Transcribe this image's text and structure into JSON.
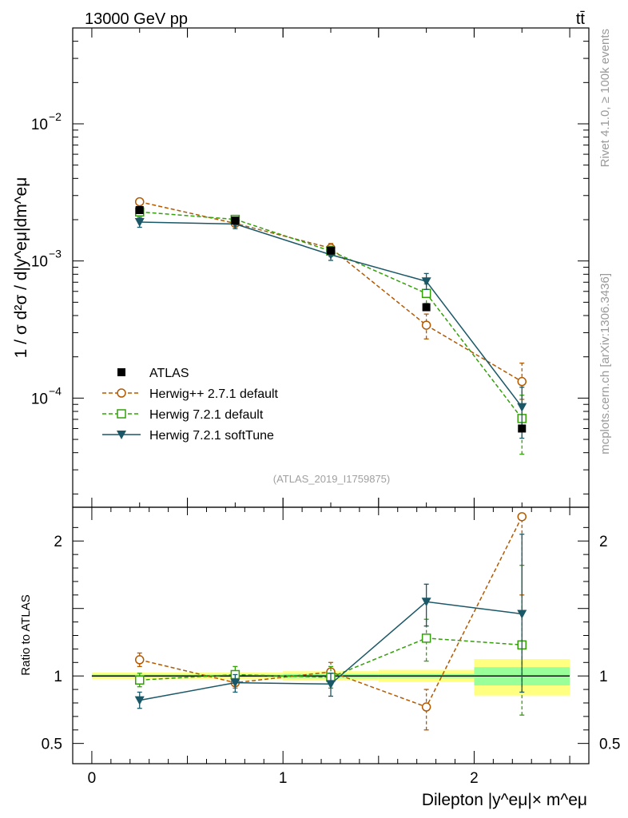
{
  "header": {
    "energy_label": "13000 GeV pp",
    "process_label": "tt̄"
  },
  "side_labels": {
    "rivet": "Rivet 4.1.0, ≥ 100k events",
    "mcplots": "mcplots.cern.ch [arXiv:1306.3436]"
  },
  "watermark": "(ATLAS_2019_I1759875)",
  "colors": {
    "atlas": "#000000",
    "herwigpp": "#b35900",
    "herwig_default": "#33a00a",
    "herwig_soft": "#1a5767",
    "band_yellow": "#ffff80",
    "band_green": "#99ff99"
  },
  "chart_data": [
    {
      "id": "main",
      "type": "line",
      "yscale": "log",
      "ylabel": "1 / σ d²σ / d|y^eμ|dm^eμ",
      "xlim": [
        -0.1,
        2.6
      ],
      "ylim": [
        1.6e-05,
        0.05
      ],
      "y_ticks": [
        {
          "value": 0.0001,
          "label": "10",
          "exp": "−4"
        },
        {
          "value": 0.001,
          "label": "10",
          "exp": "−3"
        },
        {
          "value": 0.01,
          "label": "10",
          "exp": "−2"
        }
      ],
      "x_bins": [
        [
          0,
          0.5
        ],
        [
          0.5,
          1.0
        ],
        [
          1.0,
          1.5
        ],
        [
          1.5,
          2.0
        ],
        [
          2.0,
          2.5
        ]
      ],
      "legend": [
        "ATLAS",
        "Herwig++ 2.7.1 default",
        "Herwig 7.2.1 default",
        "Herwig 7.2.1 softTune"
      ],
      "series": [
        {
          "name": "ATLAS",
          "style": "data",
          "x": [
            0.25,
            0.75,
            1.25,
            1.75,
            2.25
          ],
          "y": [
            0.00235,
            0.00197,
            0.00119,
            0.00046,
            6e-05
          ]
        },
        {
          "name": "Herwig++ 2.7.1 default",
          "style": "circle",
          "x": [
            0.25,
            0.75,
            1.25,
            1.75,
            2.25
          ],
          "y": [
            0.0027,
            0.00188,
            0.00124,
            0.00034,
            0.000132
          ],
          "err_lo": [
            0.0026,
            0.0018,
            0.00114,
            0.00027,
            9.8e-05
          ],
          "err_hi": [
            0.0028,
            0.00196,
            0.00134,
            0.00041,
            0.00018
          ]
        },
        {
          "name": "Herwig 7.2.1 default",
          "style": "square",
          "x": [
            0.25,
            0.75,
            1.25,
            1.75,
            2.25
          ],
          "y": [
            0.00228,
            0.00201,
            0.00118,
            0.00058,
            7.1e-05
          ],
          "err_lo": [
            0.00218,
            0.00192,
            0.00108,
            0.00049,
            3.9e-05
          ],
          "err_hi": [
            0.00238,
            0.0021,
            0.00128,
            0.00068,
            0.000105
          ]
        },
        {
          "name": "Herwig 7.2.1 softTune",
          "style": "triangle",
          "x": [
            0.25,
            0.75,
            1.25,
            1.75,
            2.25
          ],
          "y": [
            0.00192,
            0.00186,
            0.00111,
            0.00071,
            8.6e-05
          ],
          "err_lo": [
            0.00176,
            0.00172,
            0.00101,
            0.00062,
            5.1e-05
          ],
          "err_hi": [
            0.00208,
            0.002,
            0.00121,
            0.00081,
            0.00012
          ]
        }
      ]
    },
    {
      "id": "ratio",
      "type": "line",
      "ylabel": "Ratio to ATLAS",
      "xlabel": "Dilepton |y^eμ|× m^eμ",
      "xlim": [
        -0.1,
        2.6
      ],
      "ylim": [
        0.35,
        2.25
      ],
      "y_ticks": [
        {
          "value": 0.5,
          "label": "0.5"
        },
        {
          "value": 1,
          "label": "1"
        },
        {
          "value": 2,
          "label": "2"
        }
      ],
      "x_ticks": [
        0,
        1,
        2
      ],
      "bands": [
        {
          "x": [
            0,
            0.5
          ],
          "yellow": [
            0.975,
            1.025
          ],
          "green": [
            0.99,
            1.01
          ]
        },
        {
          "x": [
            0.5,
            1.0
          ],
          "yellow": [
            0.975,
            1.025
          ],
          "green": [
            0.99,
            1.01
          ]
        },
        {
          "x": [
            1.0,
            1.5
          ],
          "yellow": [
            0.965,
            1.035
          ],
          "green": [
            0.985,
            1.015
          ]
        },
        {
          "x": [
            1.5,
            2.0
          ],
          "yellow": [
            0.955,
            1.045
          ],
          "green": [
            0.985,
            1.015
          ]
        },
        {
          "x": [
            2.0,
            2.5
          ],
          "yellow": [
            0.855,
            1.125
          ],
          "green": [
            0.93,
            1.065
          ]
        }
      ],
      "series": [
        {
          "name": "Herwig++ 2.7.1 default",
          "style": "circle",
          "x": [
            0.25,
            0.75,
            1.25,
            1.75,
            2.25
          ],
          "y": [
            1.12,
            0.95,
            1.03,
            0.77,
            2.18
          ],
          "err_lo": [
            1.07,
            0.91,
            0.96,
            0.6,
            1.6
          ],
          "err_hi": [
            1.17,
            0.99,
            1.1,
            0.9,
            2.2
          ]
        },
        {
          "name": "Herwig 7.2.1 default",
          "style": "square",
          "x": [
            0.25,
            0.75,
            1.25,
            1.75,
            2.25
          ],
          "y": [
            0.97,
            1.01,
            0.99,
            1.28,
            1.23
          ],
          "err_lo": [
            0.92,
            0.96,
            0.91,
            1.11,
            0.71
          ],
          "err_hi": [
            1.02,
            1.07,
            1.07,
            1.42,
            1.82
          ]
        },
        {
          "name": "Herwig 7.2.1 softTune",
          "style": "triangle",
          "x": [
            0.25,
            0.75,
            1.25,
            1.75,
            2.25
          ],
          "y": [
            0.82,
            0.95,
            0.94,
            1.55,
            1.46
          ],
          "err_lo": [
            0.76,
            0.88,
            0.85,
            1.37,
            0.88
          ],
          "err_hi": [
            0.88,
            1.01,
            1.02,
            1.68,
            2.05
          ]
        }
      ]
    }
  ]
}
